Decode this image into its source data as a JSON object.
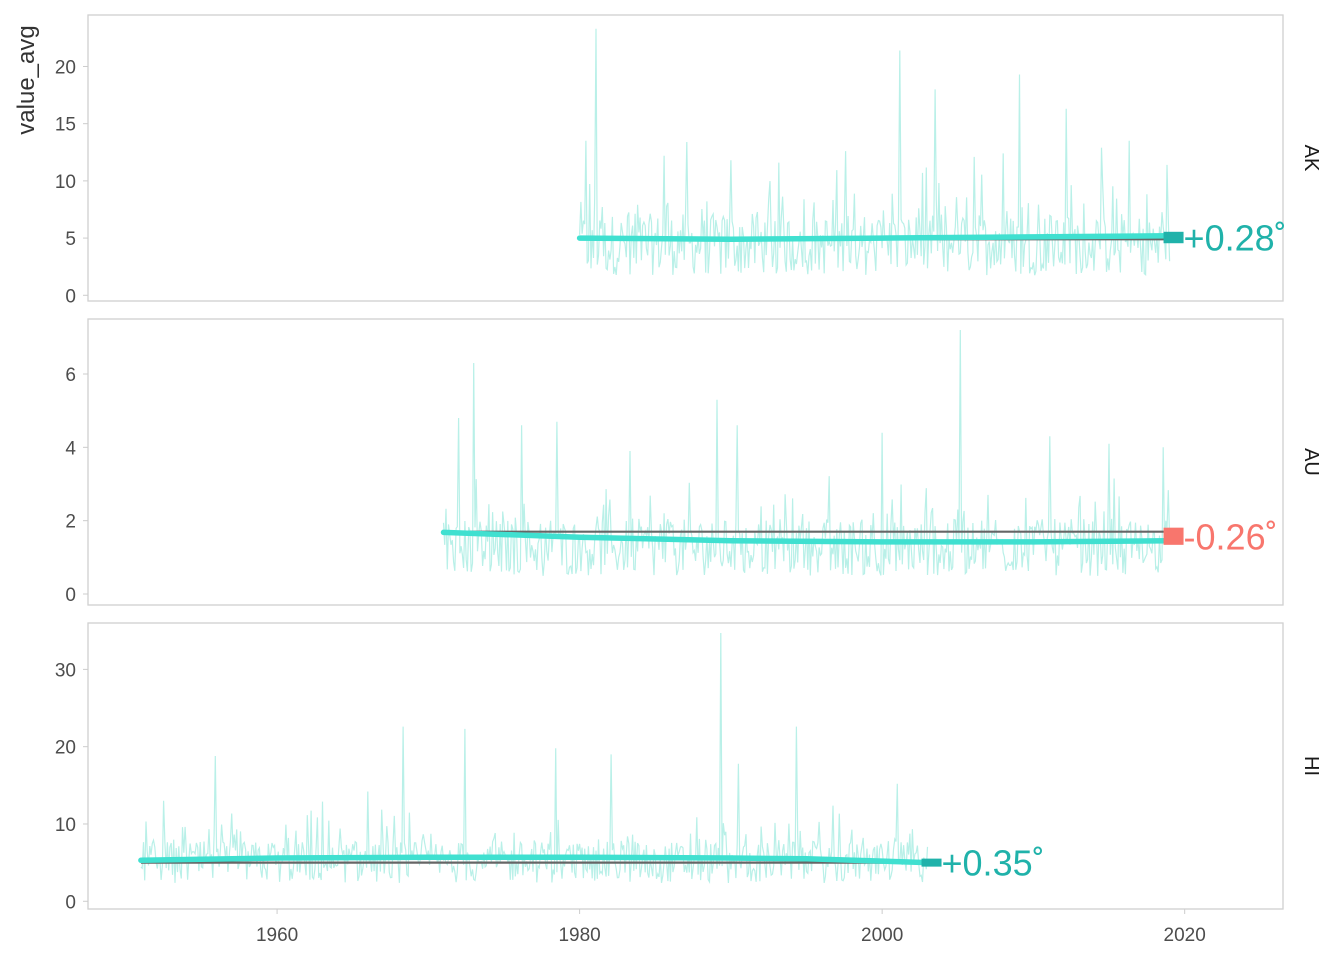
{
  "chart_data": {
    "type": "line",
    "ylabel": "value_avg",
    "xlabel": "",
    "xlim": [
      1947.5,
      2026.5
    ],
    "x_ticks": [
      1960,
      1980,
      2000,
      2020
    ],
    "colors": {
      "raw_series": "#b9f0e8",
      "smooth_trend": "#40e0d0",
      "baseline": "#666666",
      "positive": "#20b2aa",
      "negative": "#f8766d",
      "panel_border": "#d0d0d0",
      "tick_text": "#4d4d4d"
    },
    "panels": [
      {
        "name": "AK",
        "ylim": [
          -0.5,
          24.5
        ],
        "y_ticks": [
          0,
          5,
          10,
          15,
          20
        ],
        "x_start": 1980,
        "x_end": 2019,
        "raw": {
          "baseline": 4.9,
          "typical_min": 0.4,
          "peak_values": [
            {
              "x": 1981.1,
              "y": 23.3
            },
            {
              "x": 1980.4,
              "y": 13.5
            },
            {
              "x": 1985.6,
              "y": 12.2
            },
            {
              "x": 1987.1,
              "y": 13.4
            },
            {
              "x": 1990.0,
              "y": 11.8
            },
            {
              "x": 1993.2,
              "y": 11.6
            },
            {
              "x": 1997.6,
              "y": 12.6
            },
            {
              "x": 2001.2,
              "y": 21.4
            },
            {
              "x": 2003.5,
              "y": 18.0
            },
            {
              "x": 2006.1,
              "y": 12.1
            },
            {
              "x": 2008.0,
              "y": 12.4
            },
            {
              "x": 2009.1,
              "y": 19.3
            },
            {
              "x": 2012.2,
              "y": 16.3
            },
            {
              "x": 2014.5,
              "y": 12.9
            },
            {
              "x": 2016.3,
              "y": 13.5
            },
            {
              "x": 2018.8,
              "y": 11.4
            }
          ]
        },
        "baseline": 4.9,
        "smooth": [
          {
            "x": 1980,
            "y": 5.0
          },
          {
            "x": 1990,
            "y": 4.9
          },
          {
            "x": 2000,
            "y": 5.0
          },
          {
            "x": 2010,
            "y": 5.1
          },
          {
            "x": 2019,
            "y": 5.2
          }
        ],
        "change_label": "+0.28˚",
        "change_sign": "positive"
      },
      {
        "name": "AU",
        "ylim": [
          -0.3,
          7.5
        ],
        "y_ticks": [
          0,
          2,
          4,
          6
        ],
        "x_start": 1971,
        "x_end": 2019,
        "raw": {
          "baseline": 1.4,
          "typical_min": 0.1,
          "peak_values": [
            {
              "x": 1973.0,
              "y": 6.3
            },
            {
              "x": 1972.0,
              "y": 4.8
            },
            {
              "x": 1976.2,
              "y": 4.6
            },
            {
              "x": 1978.5,
              "y": 4.7
            },
            {
              "x": 1983.3,
              "y": 3.9
            },
            {
              "x": 1989.1,
              "y": 5.3
            },
            {
              "x": 1990.4,
              "y": 4.6
            },
            {
              "x": 2000.0,
              "y": 4.4
            },
            {
              "x": 2005.2,
              "y": 7.2
            },
            {
              "x": 2011.1,
              "y": 4.3
            },
            {
              "x": 2015.0,
              "y": 4.1
            },
            {
              "x": 2018.6,
              "y": 4.0
            }
          ]
        },
        "baseline": 1.7,
        "smooth": [
          {
            "x": 1971,
            "y": 1.68
          },
          {
            "x": 1980,
            "y": 1.55
          },
          {
            "x": 1990,
            "y": 1.45
          },
          {
            "x": 2000,
            "y": 1.42
          },
          {
            "x": 2010,
            "y": 1.42
          },
          {
            "x": 2019,
            "y": 1.45
          }
        ],
        "change_label": "-0.26˚",
        "change_sign": "negative"
      },
      {
        "name": "HI",
        "ylim": [
          -1,
          36
        ],
        "y_ticks": [
          0,
          10,
          20,
          30
        ],
        "x_start": 1951,
        "x_end": 2003,
        "raw": {
          "baseline": 5.5,
          "typical_min": 1.0,
          "peak_values": [
            {
              "x": 1952.5,
              "y": 13.0
            },
            {
              "x": 1955.9,
              "y": 18.8
            },
            {
              "x": 1963.0,
              "y": 12.9
            },
            {
              "x": 1966.0,
              "y": 14.2
            },
            {
              "x": 1968.3,
              "y": 22.6
            },
            {
              "x": 1972.4,
              "y": 22.3
            },
            {
              "x": 1978.4,
              "y": 19.8
            },
            {
              "x": 1982.1,
              "y": 19.0
            },
            {
              "x": 1989.3,
              "y": 34.7
            },
            {
              "x": 1990.5,
              "y": 17.8
            },
            {
              "x": 1994.3,
              "y": 22.6
            },
            {
              "x": 2001.0,
              "y": 15.2
            }
          ]
        },
        "baseline": 5.0,
        "smooth": [
          {
            "x": 1951,
            "y": 5.3
          },
          {
            "x": 1960,
            "y": 5.6
          },
          {
            "x": 1970,
            "y": 5.7
          },
          {
            "x": 1980,
            "y": 5.7
          },
          {
            "x": 1990,
            "y": 5.6
          },
          {
            "x": 1995,
            "y": 5.5
          },
          {
            "x": 2003,
            "y": 5.0
          }
        ],
        "change_label": "+0.35˚",
        "change_sign": "positive"
      }
    ]
  }
}
